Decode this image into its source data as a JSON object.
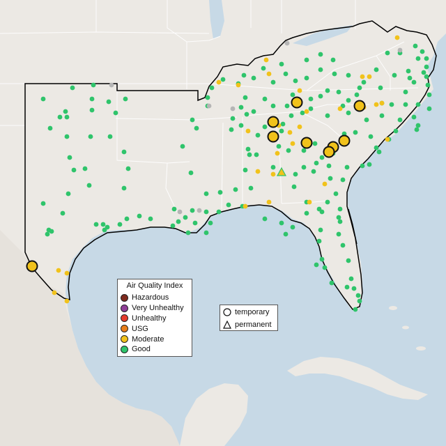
{
  "legend": {
    "title": "Air Quality Index",
    "categories": [
      {
        "label": "Hazardous",
        "color": "#7e2b1f"
      },
      {
        "label": "Very Unhealthy",
        "color": "#8f3f97"
      },
      {
        "label": "Unhealthy",
        "color": "#e53b2c"
      },
      {
        "label": "USG",
        "color": "#e87e1a"
      },
      {
        "label": "Moderate",
        "color": "#f1c21b"
      },
      {
        "label": "Good",
        "color": "#2fc46b"
      }
    ]
  },
  "shape_legend": {
    "temporary": "temporary",
    "permanent": "permanent"
  },
  "colors": {
    "land": "#ece9e4",
    "water": "#c7d9e6",
    "border": "#000000",
    "state_line": "#ffffff",
    "good": "#2fc46b",
    "moderate": "#f1c21b",
    "nodata": "#b5b5b5"
  }
}
